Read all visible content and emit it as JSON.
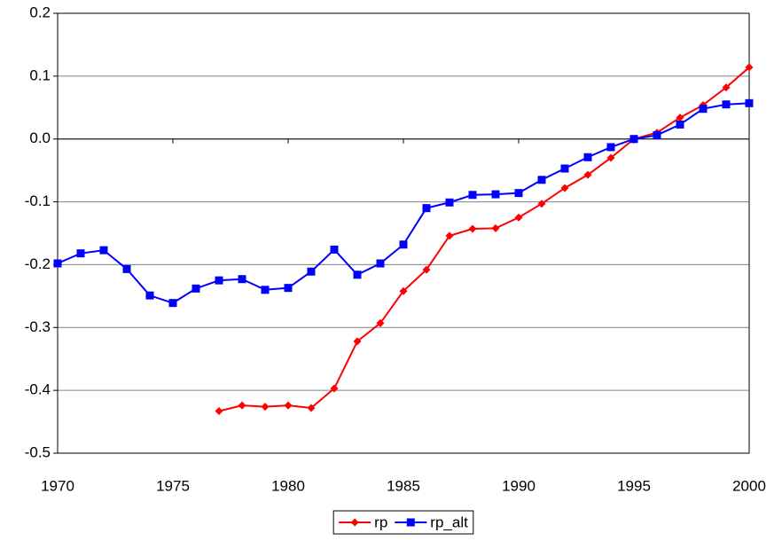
{
  "chart_data": {
    "type": "line",
    "x": [
      1970,
      1971,
      1972,
      1973,
      1974,
      1975,
      1976,
      1977,
      1978,
      1979,
      1980,
      1981,
      1982,
      1983,
      1984,
      1985,
      1986,
      1987,
      1988,
      1989,
      1990,
      1991,
      1992,
      1993,
      1994,
      1995,
      1996,
      1997,
      1998,
      1999,
      2000
    ],
    "series": [
      {
        "name": "rp",
        "color": "#ff0000",
        "marker": "diamond",
        "values": [
          null,
          null,
          null,
          null,
          null,
          null,
          null,
          -0.433,
          -0.424,
          -0.426,
          -0.424,
          -0.428,
          -0.397,
          -0.322,
          -0.293,
          -0.242,
          -0.208,
          -0.154,
          -0.143,
          -0.142,
          -0.125,
          -0.103,
          -0.078,
          -0.057,
          -0.03,
          0.0,
          0.01,
          0.034,
          0.054,
          0.082,
          0.114
        ]
      },
      {
        "name": "rp_alt",
        "color": "#0000ff",
        "marker": "square",
        "values": [
          -0.198,
          -0.182,
          -0.177,
          -0.207,
          -0.249,
          -0.261,
          -0.238,
          -0.225,
          -0.223,
          -0.24,
          -0.237,
          -0.211,
          -0.176,
          -0.216,
          -0.198,
          -0.168,
          -0.11,
          -0.101,
          -0.089,
          -0.088,
          -0.086,
          -0.065,
          -0.047,
          -0.029,
          -0.013,
          0.0,
          0.006,
          0.023,
          0.048,
          0.055,
          0.057
        ]
      }
    ],
    "xlim": [
      1970,
      2000
    ],
    "xticks": [
      1970,
      1975,
      1980,
      1985,
      1990,
      1995,
      2000
    ],
    "ylim": [
      -0.5,
      0.2
    ],
    "yticks": [
      -0.5,
      -0.4,
      -0.3,
      -0.2,
      -0.1,
      {
        "value": 0,
        "label": "0.0"
      },
      0.1,
      0.2
    ],
    "grid": true,
    "legend": "bottom"
  }
}
